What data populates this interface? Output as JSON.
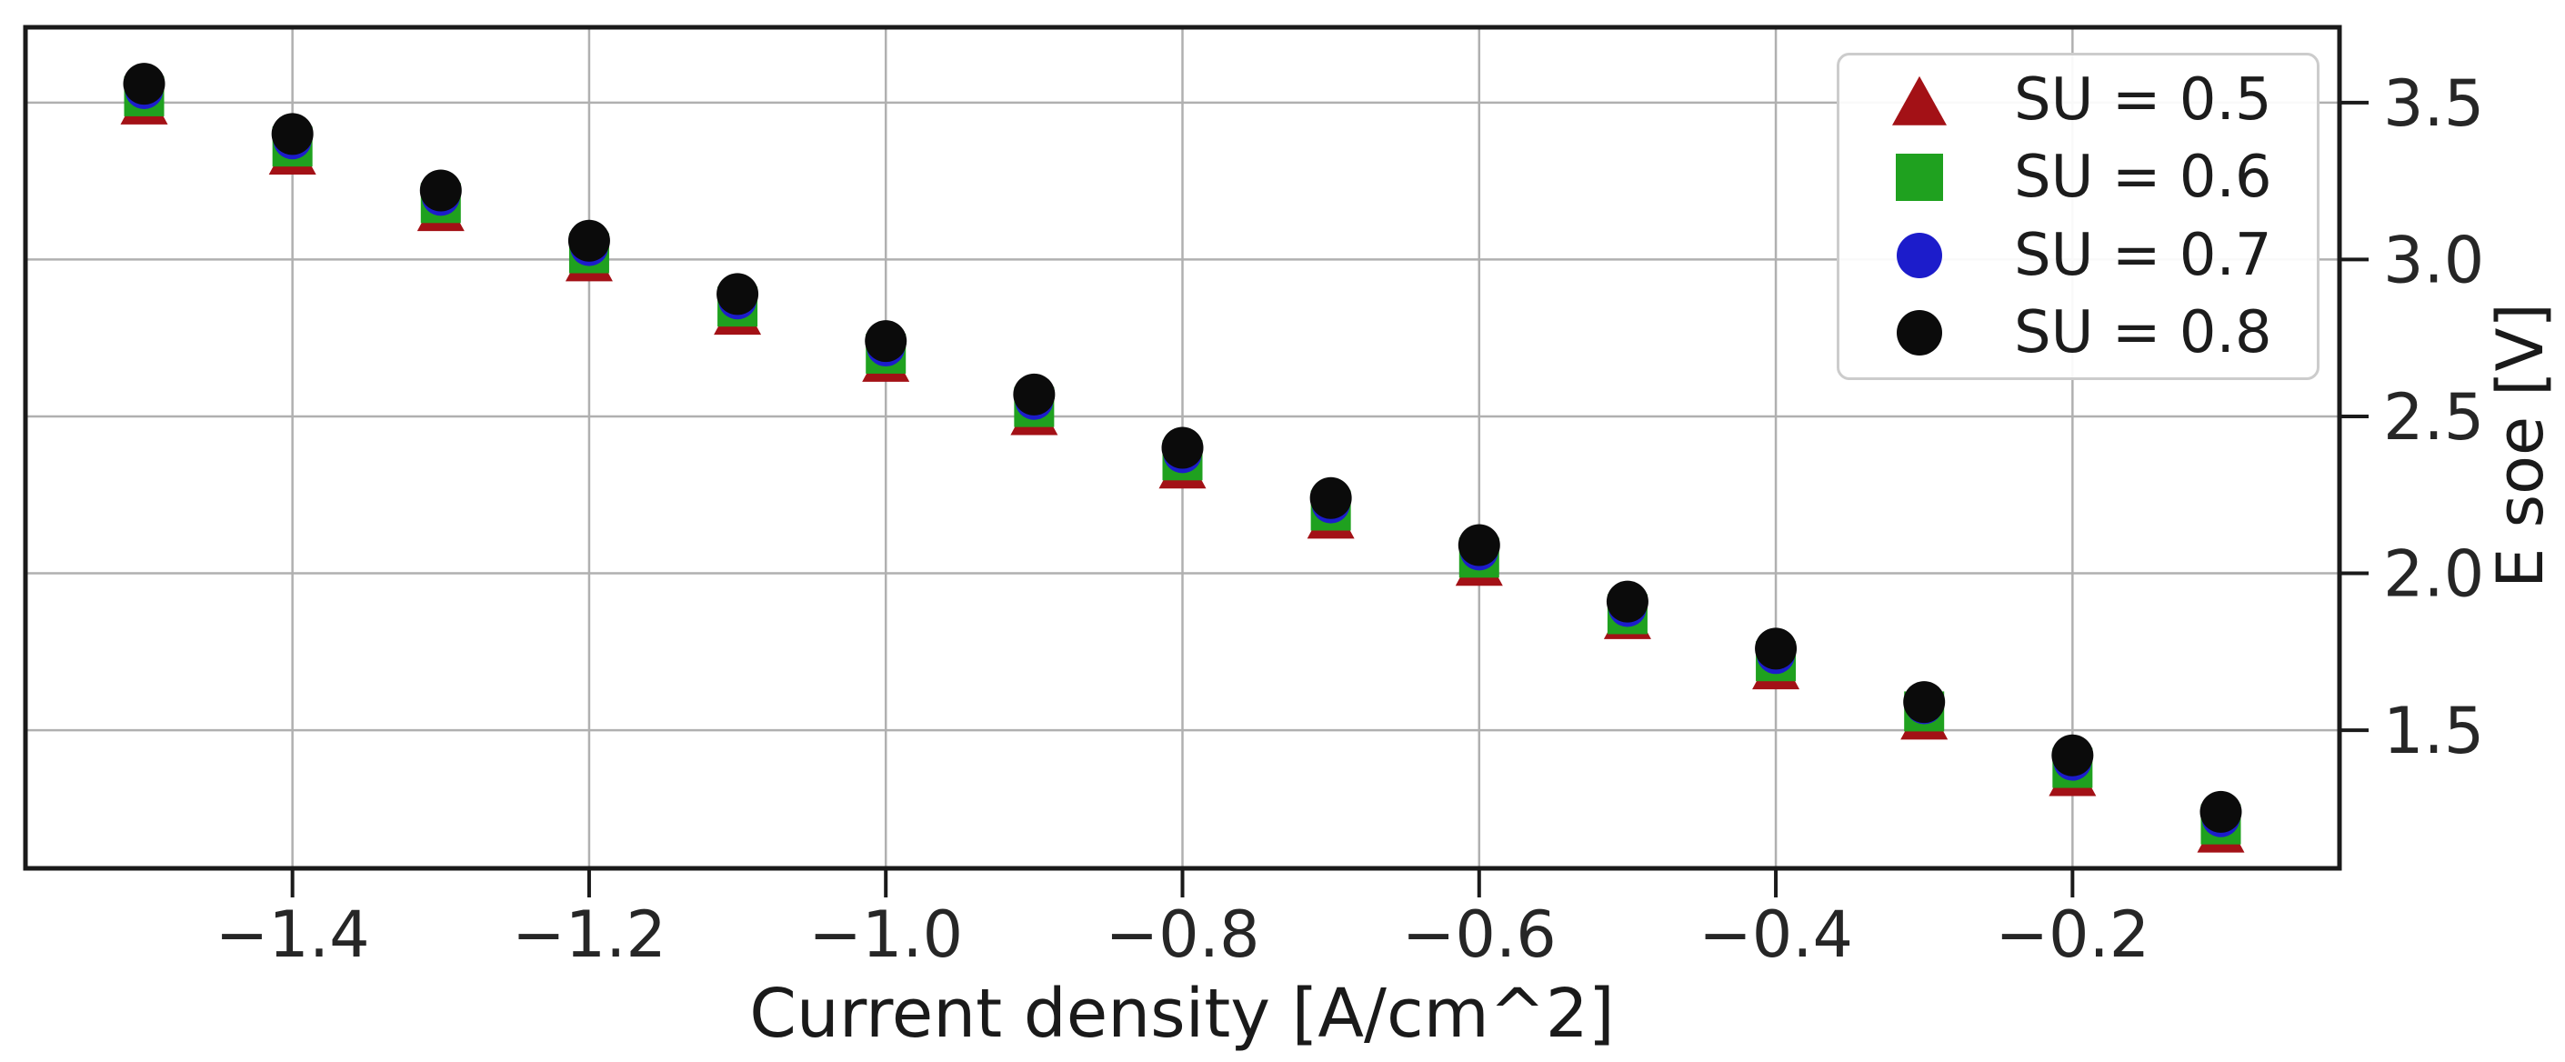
{
  "figure": {
    "title": "",
    "xlabel": "Current density [A/cm^2]",
    "ylabel": "E soe [V]"
  },
  "chart_data": {
    "type": "scatter",
    "title": "",
    "xlabel": "Current density [A/cm^2]",
    "ylabel": "E soe [V]",
    "xlim": [
      -1.58,
      -0.02
    ],
    "ylim": [
      1.06,
      3.74
    ],
    "grid": true,
    "legend_position": "upper right",
    "x_ticks": [
      -1.4,
      -1.2,
      -1.0,
      -0.8,
      -0.6,
      -0.4,
      -0.2
    ],
    "x_tick_labels": [
      "−1.4",
      "−1.2",
      "−1.0",
      "−0.8",
      "−0.6",
      "−0.4",
      "−0.2"
    ],
    "y_ticks": [
      3.5,
      3.0,
      2.5,
      2.0,
      1.5
    ],
    "y_tick_labels": [
      "3.5",
      "3.0",
      "2.5",
      "2.0",
      "1.5"
    ],
    "x": [
      -1.5,
      -1.4,
      -1.3,
      -1.2,
      -1.1,
      -1.0,
      -0.9,
      -0.8,
      -0.7,
      -0.6,
      -0.5,
      -0.4,
      -0.3,
      -0.2,
      -0.1
    ],
    "series": [
      {
        "name": "SU = 0.5",
        "marker": "triangle-up",
        "color": "#a31116",
        "values": [
          3.5,
          3.34,
          3.16,
          3.0,
          2.83,
          2.68,
          2.51,
          2.34,
          2.18,
          2.03,
          1.86,
          1.7,
          1.54,
          1.36,
          1.18
        ]
      },
      {
        "name": "SU = 0.6",
        "marker": "square",
        "color": "#1fa11f",
        "values": [
          3.52,
          3.36,
          3.18,
          3.02,
          2.85,
          2.7,
          2.53,
          2.36,
          2.2,
          2.05,
          1.87,
          1.72,
          1.56,
          1.38,
          1.2
        ]
      },
      {
        "name": "SU = 0.7",
        "marker": "circle",
        "color": "#1c1ccb",
        "values": [
          3.54,
          3.38,
          3.2,
          3.04,
          2.87,
          2.72,
          2.55,
          2.38,
          2.22,
          2.07,
          1.89,
          1.74,
          1.58,
          1.4,
          1.22
        ]
      },
      {
        "name": "SU = 0.8",
        "marker": "circle",
        "color": "#0b0b0b",
        "values": [
          3.56,
          3.4,
          3.22,
          3.06,
          2.89,
          2.74,
          2.57,
          2.4,
          2.24,
          2.09,
          1.91,
          1.76,
          1.59,
          1.42,
          1.24
        ]
      }
    ],
    "style": {
      "grid_color": "#b0b0b0",
      "axis_color": "#1a1a1a",
      "tick_label_color": "#262626",
      "legend_border_color": "#cccccc"
    }
  }
}
